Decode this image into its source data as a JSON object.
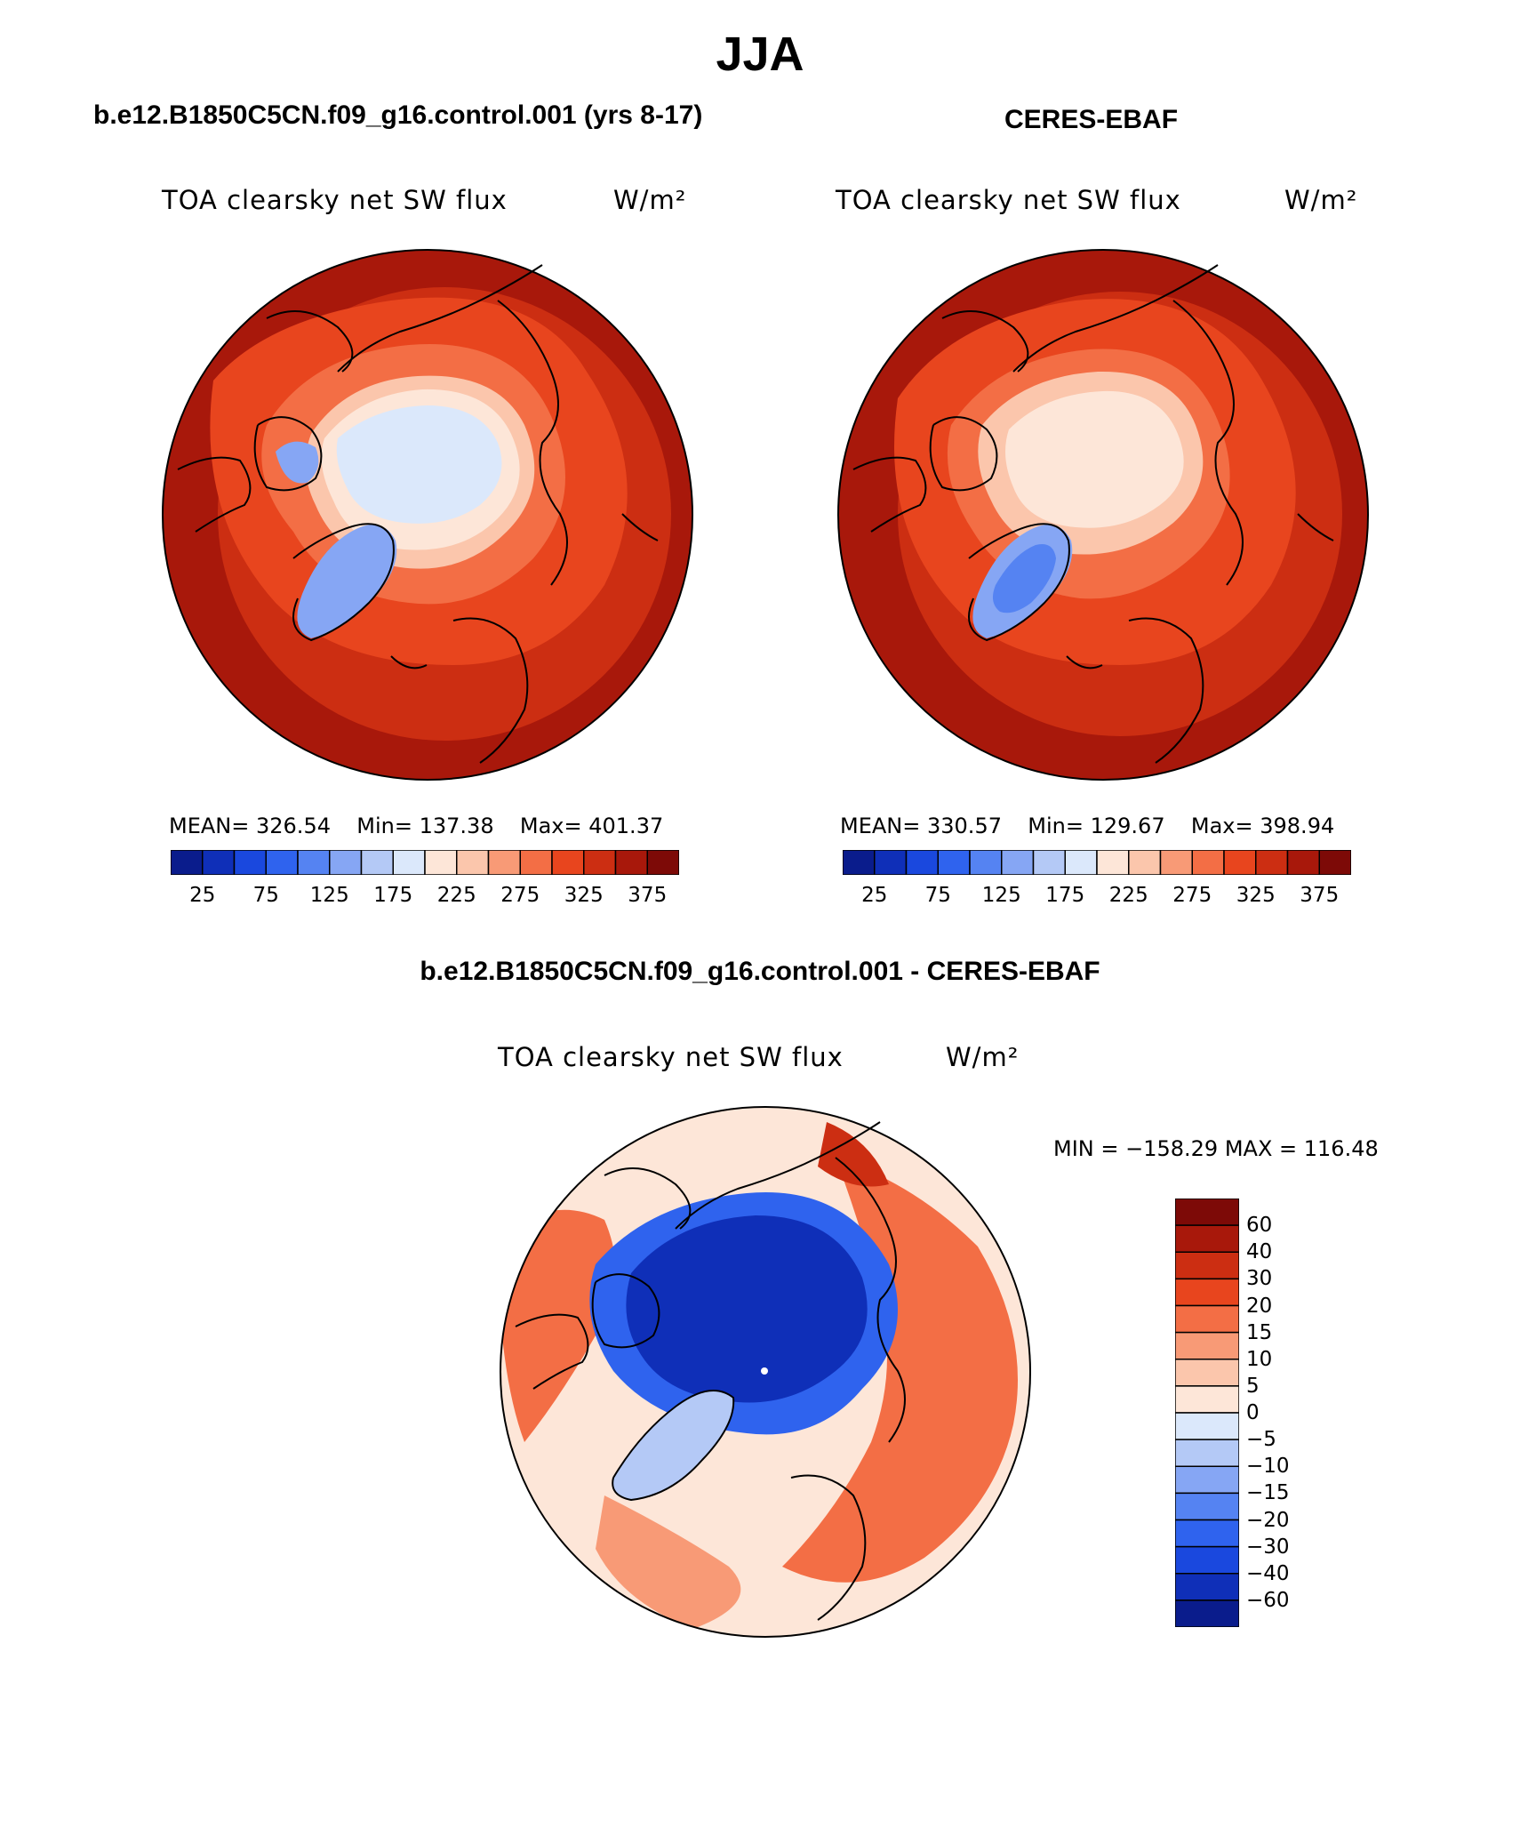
{
  "title": "JJA",
  "panels": {
    "model": {
      "title": "b.e12.B1850C5CN.f09_g16.control.001 (yrs 8-17)",
      "variable": "TOA clearsky net SW flux",
      "units": "W/m²",
      "mean_label": "MEAN=",
      "mean": "326.54",
      "min_label": "Min=",
      "min": "137.38",
      "max_label": "Max=",
      "max": "401.37"
    },
    "obs": {
      "title": "CERES-EBAF",
      "variable": "TOA clearsky net SW flux",
      "units": "W/m²",
      "mean_label": "MEAN=",
      "mean": "330.57",
      "min_label": "Min=",
      "min": "129.67",
      "max_label": "Max=",
      "max": "398.94"
    },
    "diff": {
      "title": "b.e12.B1850C5CN.f09_g16.control.001 - CERES-EBAF",
      "variable": "TOA clearsky net SW flux",
      "units": "W/m²",
      "minmax": "MIN = −158.29 MAX = 116.48"
    }
  },
  "colorbar_abs": {
    "colors": [
      "#0a1c8c",
      "#0f2fb8",
      "#1a48de",
      "#2f63ee",
      "#5583f2",
      "#86a6f4",
      "#b4c9f6",
      "#dbe8fb",
      "#fde6d8",
      "#fbc6ac",
      "#f89a76",
      "#f36e45",
      "#e8451e",
      "#cc2e12",
      "#a8180b",
      "#7d0a07"
    ],
    "labels": [
      "25",
      "75",
      "125",
      "175",
      "225",
      "275",
      "325",
      "375"
    ]
  },
  "colorbar_diff": {
    "colors": [
      "#7d0a07",
      "#a8180b",
      "#cc2e12",
      "#e8451e",
      "#f36e45",
      "#f89a76",
      "#fbc6ac",
      "#fde6d8",
      "#dbe8fb",
      "#b4c9f6",
      "#86a6f4",
      "#5583f2",
      "#2f63ee",
      "#1a48de",
      "#0f2fb8",
      "#0a1c8c"
    ],
    "labels": [
      "60",
      "40",
      "30",
      "20",
      "15",
      "10",
      "5",
      "0",
      "−5",
      "−10",
      "−15",
      "−20",
      "−30",
      "−40",
      "−60"
    ]
  }
}
